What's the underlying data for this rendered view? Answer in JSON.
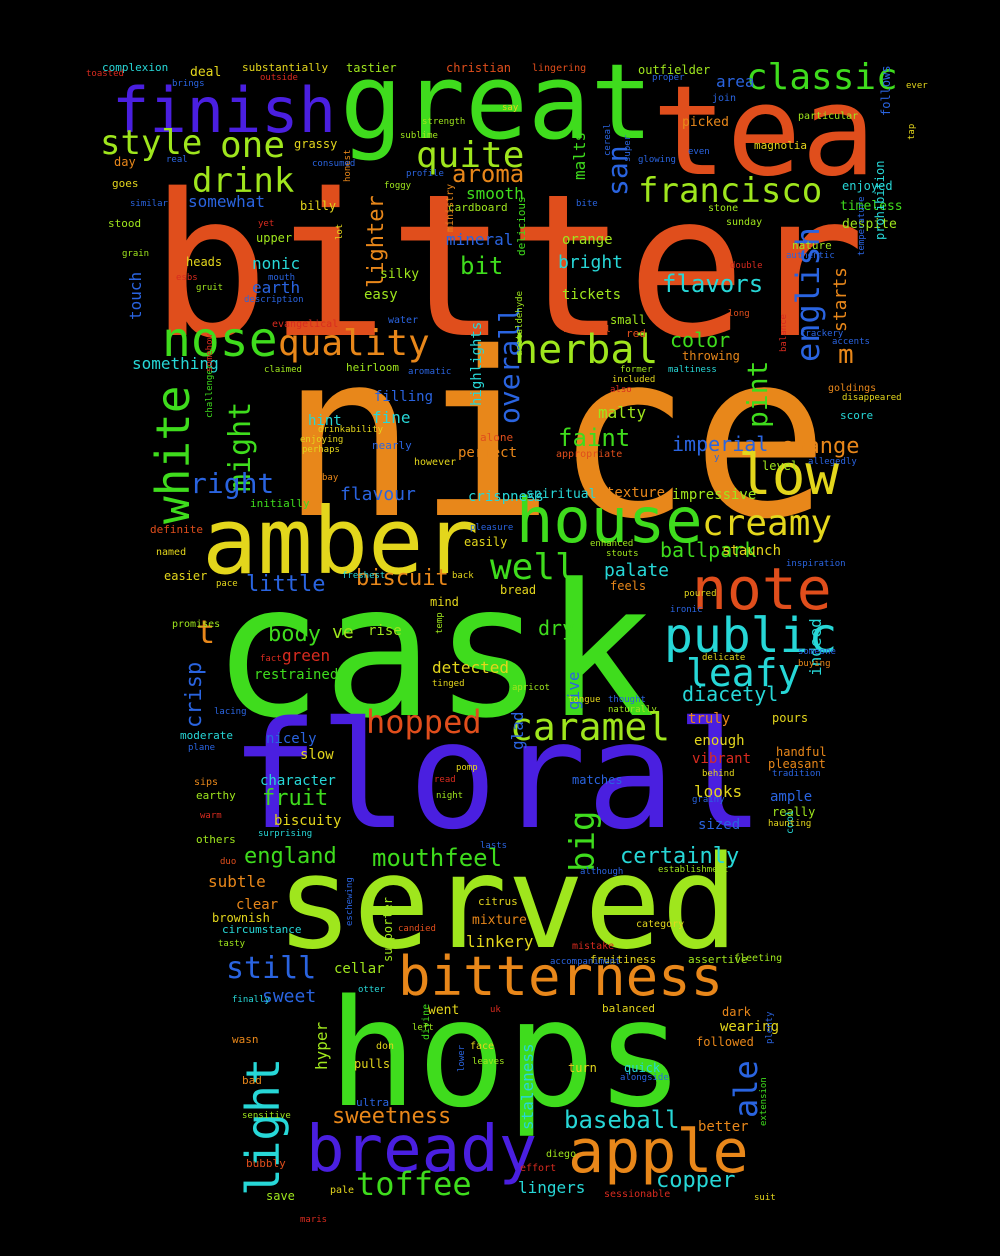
{
  "background": "#000000",
  "palette": {
    "orange": "#e8871a",
    "red_orange": "#e04e1c",
    "red": "#d82b1f",
    "yellow": "#e3d61c",
    "lime": "#9fe61d",
    "green": "#3fdc1d",
    "cyan": "#27d7d7",
    "blue": "#2a64e0",
    "indigo": "#4a1fe0"
  },
  "words": [
    {
      "text": "bitter",
      "color": "red_orange"
    },
    {
      "text": "nice",
      "color": "orange"
    },
    {
      "text": "cask",
      "color": "green"
    },
    {
      "text": "floral",
      "color": "indigo"
    },
    {
      "text": "served",
      "color": "lime"
    },
    {
      "text": "hops",
      "color": "green"
    },
    {
      "text": "great",
      "color": "green"
    },
    {
      "text": "tea",
      "color": "red_orange"
    },
    {
      "text": "amber",
      "color": "yellow"
    },
    {
      "text": "finish",
      "color": "indigo"
    },
    {
      "text": "house",
      "color": "green"
    },
    {
      "text": "bitterness",
      "color": "orange"
    },
    {
      "text": "note",
      "color": "red_orange"
    },
    {
      "text": "public",
      "color": "cyan"
    },
    {
      "text": "bready",
      "color": "indigo"
    },
    {
      "text": "apple",
      "color": "orange"
    },
    {
      "text": "low",
      "color": "yellow"
    },
    {
      "text": "light",
      "color": "cyan"
    },
    {
      "text": "nose",
      "color": "green"
    },
    {
      "text": "classic",
      "color": "green"
    },
    {
      "text": "white",
      "color": "green"
    },
    {
      "text": "caramel",
      "color": "lime"
    },
    {
      "text": "quality",
      "color": "orange"
    },
    {
      "text": "herbal",
      "color": "lime"
    },
    {
      "text": "francisco",
      "color": "lime"
    },
    {
      "text": "creamy",
      "color": "yellow"
    },
    {
      "text": "one",
      "color": "lime"
    },
    {
      "text": "style",
      "color": "lime"
    },
    {
      "text": "quite",
      "color": "lime"
    },
    {
      "text": "drink",
      "color": "lime"
    },
    {
      "text": "english",
      "color": "blue"
    },
    {
      "text": "leafy",
      "color": "cyan"
    },
    {
      "text": "hopped",
      "color": "red_orange"
    },
    {
      "text": "well",
      "color": "green"
    },
    {
      "text": "big",
      "color": "green"
    },
    {
      "text": "overall",
      "color": "blue"
    },
    {
      "text": "might",
      "color": "green"
    },
    {
      "text": "right",
      "color": "blue"
    },
    {
      "text": "pint",
      "color": "green"
    },
    {
      "text": "ale",
      "color": "blue"
    },
    {
      "text": "toffee",
      "color": "green"
    },
    {
      "text": "mouthfeel",
      "color": "green"
    },
    {
      "text": "still",
      "color": "blue"
    },
    {
      "text": "san",
      "color": "blue"
    },
    {
      "text": "lighter",
      "color": "orange"
    },
    {
      "text": "aroma",
      "color": "orange"
    },
    {
      "text": "flavors",
      "color": "cyan"
    },
    {
      "text": "m",
      "color": "orange"
    },
    {
      "text": "t",
      "color": "orange"
    },
    {
      "text": "bit",
      "color": "green"
    },
    {
      "text": "biscuit",
      "color": "orange"
    },
    {
      "text": "faint",
      "color": "green"
    },
    {
      "text": "body",
      "color": "green"
    },
    {
      "text": "crisp",
      "color": "blue"
    },
    {
      "text": "sweetness",
      "color": "orange"
    },
    {
      "text": "baseball",
      "color": "cyan"
    },
    {
      "text": "copper",
      "color": "cyan"
    },
    {
      "text": "certainly",
      "color": "cyan"
    },
    {
      "text": "england",
      "color": "green"
    },
    {
      "text": "fruit",
      "color": "green"
    },
    {
      "text": "imperial",
      "color": "blue"
    },
    {
      "text": "change",
      "color": "orange"
    },
    {
      "text": "color",
      "color": "green"
    },
    {
      "text": "diacetyl",
      "color": "cyan"
    },
    {
      "text": "ballpark",
      "color": "green"
    },
    {
      "text": "little",
      "color": "blue"
    },
    {
      "text": "palate",
      "color": "cyan"
    },
    {
      "text": "starts",
      "color": "orange"
    },
    {
      "text": "flavour",
      "color": "blue"
    },
    {
      "text": "smooth",
      "color": "green"
    },
    {
      "text": "bright",
      "color": "cyan"
    },
    {
      "text": "malts",
      "color": "green"
    },
    {
      "text": "mineral",
      "color": "blue"
    },
    {
      "text": "earth",
      "color": "blue"
    },
    {
      "text": "nonic",
      "color": "cyan"
    },
    {
      "text": "touch",
      "color": "blue"
    },
    {
      "text": "something",
      "color": "cyan"
    },
    {
      "text": "somewhat",
      "color": "blue"
    },
    {
      "text": "hint",
      "color": "cyan"
    },
    {
      "text": "fine",
      "color": "cyan"
    },
    {
      "text": "filling",
      "color": "blue"
    },
    {
      "text": "highlights",
      "color": "cyan"
    },
    {
      "text": "perfect",
      "color": "orange"
    },
    {
      "text": "malty",
      "color": "lime"
    },
    {
      "text": "dry",
      "color": "green"
    },
    {
      "text": "give",
      "color": "blue"
    },
    {
      "text": "glad",
      "color": "blue"
    },
    {
      "text": "detected",
      "color": "yellow"
    },
    {
      "text": "restrained",
      "color": "green"
    },
    {
      "text": "green",
      "color": "red"
    },
    {
      "text": "rise",
      "color": "lime"
    },
    {
      "text": "ve",
      "color": "lime"
    },
    {
      "text": "slow",
      "color": "yellow"
    },
    {
      "text": "character",
      "color": "cyan"
    },
    {
      "text": "biscuity",
      "color": "yellow"
    },
    {
      "text": "nicely",
      "color": "blue"
    },
    {
      "text": "subtle",
      "color": "orange"
    },
    {
      "text": "clear",
      "color": "orange"
    },
    {
      "text": "brownish",
      "color": "yellow"
    },
    {
      "text": "circumstance",
      "color": "cyan"
    },
    {
      "text": "sweet",
      "color": "blue"
    },
    {
      "text": "hyper",
      "color": "lime"
    },
    {
      "text": "cellar",
      "color": "lime"
    },
    {
      "text": "linkery",
      "color": "yellow"
    },
    {
      "text": "mixture",
      "color": "orange"
    },
    {
      "text": "staleness",
      "color": "cyan"
    },
    {
      "text": "pulls",
      "color": "yellow"
    },
    {
      "text": "lingers",
      "color": "cyan"
    },
    {
      "text": "wearing",
      "color": "yellow"
    },
    {
      "text": "dark",
      "color": "orange"
    },
    {
      "text": "followed",
      "color": "orange"
    },
    {
      "text": "quick",
      "color": "cyan"
    },
    {
      "text": "turn",
      "color": "yellow"
    },
    {
      "text": "better",
      "color": "orange"
    },
    {
      "text": "looks",
      "color": "yellow"
    },
    {
      "text": "sized",
      "color": "blue"
    },
    {
      "text": "ample",
      "color": "blue"
    },
    {
      "text": "really",
      "color": "lime"
    },
    {
      "text": "handful",
      "color": "orange"
    },
    {
      "text": "pleasant",
      "color": "orange"
    },
    {
      "text": "enough",
      "color": "yellow"
    },
    {
      "text": "vibrant",
      "color": "red"
    },
    {
      "text": "truly",
      "color": "orange"
    },
    {
      "text": "pours",
      "color": "yellow"
    },
    {
      "text": "indeed",
      "color": "cyan"
    },
    {
      "text": "texture",
      "color": "orange"
    },
    {
      "text": "impressive",
      "color": "lime"
    },
    {
      "text": "crispness",
      "color": "cyan"
    },
    {
      "text": "spiritual",
      "color": "cyan"
    },
    {
      "text": "staunch",
      "color": "yellow"
    },
    {
      "text": "easily",
      "color": "yellow"
    },
    {
      "text": "bread",
      "color": "yellow"
    },
    {
      "text": "feels",
      "color": "orange"
    },
    {
      "text": "level",
      "color": "lime"
    },
    {
      "text": "score",
      "color": "cyan"
    },
    {
      "text": "goldings",
      "color": "orange"
    },
    {
      "text": "tickets",
      "color": "lime"
    },
    {
      "text": "small",
      "color": "lime"
    },
    {
      "text": "orange",
      "color": "lime"
    },
    {
      "text": "easy",
      "color": "lime"
    },
    {
      "text": "upper",
      "color": "lime"
    },
    {
      "text": "heads",
      "color": "yellow"
    },
    {
      "text": "stood",
      "color": "lime"
    },
    {
      "text": "goes",
      "color": "yellow"
    },
    {
      "text": "day",
      "color": "orange"
    },
    {
      "text": "deal",
      "color": "yellow"
    },
    {
      "text": "tastier",
      "color": "lime"
    },
    {
      "text": "christian",
      "color": "red_orange"
    },
    {
      "text": "outfielder",
      "color": "lime"
    },
    {
      "text": "area",
      "color": "blue"
    },
    {
      "text": "picked",
      "color": "orange"
    },
    {
      "text": "magnolia",
      "color": "yellow"
    },
    {
      "text": "follows",
      "color": "blue"
    },
    {
      "text": "enjoyed",
      "color": "cyan"
    },
    {
      "text": "timeless",
      "color": "green"
    },
    {
      "text": "despite",
      "color": "lime"
    },
    {
      "text": "nature",
      "color": "lime"
    },
    {
      "text": "prohibition",
      "color": "cyan"
    },
    {
      "text": "cardboard",
      "color": "lime"
    },
    {
      "text": "billy",
      "color": "yellow"
    },
    {
      "text": "grassy",
      "color": "yellow"
    },
    {
      "text": "complexion",
      "color": "cyan"
    },
    {
      "text": "substantially",
      "color": "yellow"
    },
    {
      "text": "lingering",
      "color": "red_orange"
    },
    {
      "text": "particular",
      "color": "lime"
    },
    {
      "text": "sunday",
      "color": "lime"
    },
    {
      "text": "stone",
      "color": "lime"
    },
    {
      "text": "silky",
      "color": "lime"
    },
    {
      "text": "water",
      "color": "blue"
    },
    {
      "text": "red",
      "color": "red_orange"
    },
    {
      "text": "throwing",
      "color": "orange"
    },
    {
      "text": "heirloom",
      "color": "lime"
    },
    {
      "text": "alone",
      "color": "red_orange"
    },
    {
      "text": "however",
      "color": "yellow"
    },
    {
      "text": "appropriate",
      "color": "red_orange"
    },
    {
      "text": "nearly",
      "color": "blue"
    },
    {
      "text": "ministry",
      "color": "orange"
    },
    {
      "text": "delicious",
      "color": "green"
    },
    {
      "text": "evangelical",
      "color": "red"
    },
    {
      "text": "initially",
      "color": "green"
    },
    {
      "text": "definite",
      "color": "red_orange"
    },
    {
      "text": "named",
      "color": "yellow"
    },
    {
      "text": "easier",
      "color": "yellow"
    },
    {
      "text": "promises",
      "color": "lime"
    },
    {
      "text": "moderate",
      "color": "cyan"
    },
    {
      "text": "sips",
      "color": "orange"
    },
    {
      "text": "earthy",
      "color": "lime"
    },
    {
      "text": "others",
      "color": "lime"
    },
    {
      "text": "cool",
      "color": "cyan"
    },
    {
      "text": "citrus",
      "color": "yellow"
    },
    {
      "text": "category",
      "color": "yellow"
    },
    {
      "text": "assertive",
      "color": "lime"
    },
    {
      "text": "fruitiness",
      "color": "yellow"
    },
    {
      "text": "mistake",
      "color": "red"
    },
    {
      "text": "balanced",
      "color": "yellow"
    },
    {
      "text": "went",
      "color": "yellow"
    },
    {
      "text": "face",
      "color": "yellow"
    },
    {
      "text": "divine",
      "color": "green"
    },
    {
      "text": "don",
      "color": "yellow"
    },
    {
      "text": "wasn",
      "color": "orange"
    },
    {
      "text": "bad",
      "color": "orange"
    },
    {
      "text": "save",
      "color": "lime"
    },
    {
      "text": "pale",
      "color": "yellow"
    },
    {
      "text": "bubbly",
      "color": "red_orange"
    },
    {
      "text": "sensitive",
      "color": "lime"
    },
    {
      "text": "ultra",
      "color": "blue"
    },
    {
      "text": "diego",
      "color": "lime"
    },
    {
      "text": "effort",
      "color": "red"
    },
    {
      "text": "sessionable",
      "color": "red"
    },
    {
      "text": "suit",
      "color": "yellow"
    },
    {
      "text": "extension",
      "color": "green"
    },
    {
      "text": "plenty",
      "color": "blue"
    },
    {
      "text": "alongside",
      "color": "blue"
    },
    {
      "text": "fleeting",
      "color": "lime"
    },
    {
      "text": "supporter",
      "color": "lime"
    },
    {
      "text": "matches",
      "color": "blue"
    },
    {
      "text": "establishment",
      "color": "lime"
    },
    {
      "text": "tradition",
      "color": "blue"
    },
    {
      "text": "haunting",
      "color": "yellow"
    },
    {
      "text": "behind",
      "color": "yellow"
    },
    {
      "text": "grainy",
      "color": "blue"
    },
    {
      "text": "enhanced",
      "color": "lime"
    },
    {
      "text": "stouts",
      "color": "lime"
    },
    {
      "text": "inspiration",
      "color": "blue"
    },
    {
      "text": "buying",
      "color": "orange"
    },
    {
      "text": "someone",
      "color": "blue"
    },
    {
      "text": "delicate",
      "color": "yellow"
    },
    {
      "text": "naturally",
      "color": "lime"
    },
    {
      "text": "thought",
      "color": "blue"
    },
    {
      "text": "ironic",
      "color": "blue"
    },
    {
      "text": "apricot",
      "color": "lime"
    },
    {
      "text": "tongue",
      "color": "yellow"
    },
    {
      "text": "lasts",
      "color": "blue"
    },
    {
      "text": "night",
      "color": "lime"
    },
    {
      "text": "pomp",
      "color": "yellow"
    },
    {
      "text": "read",
      "color": "red"
    },
    {
      "text": "candied",
      "color": "red_orange"
    },
    {
      "text": "duo",
      "color": "red_orange"
    },
    {
      "text": "surprising",
      "color": "cyan"
    },
    {
      "text": "warm",
      "color": "red"
    },
    {
      "text": "plane",
      "color": "blue"
    },
    {
      "text": "lacing",
      "color": "blue"
    },
    {
      "text": "fact",
      "color": "red"
    },
    {
      "text": "pace",
      "color": "yellow"
    },
    {
      "text": "freshest",
      "color": "cyan"
    },
    {
      "text": "back",
      "color": "yellow"
    },
    {
      "text": "pleasure",
      "color": "blue"
    },
    {
      "text": "tinged",
      "color": "yellow"
    },
    {
      "text": "temp",
      "color": "lime"
    },
    {
      "text": "mind",
      "color": "yellow"
    },
    {
      "text": "challenger",
      "color": "green"
    },
    {
      "text": "somehow",
      "color": "red"
    },
    {
      "text": "enjoying",
      "color": "yellow"
    },
    {
      "text": "perhaps",
      "color": "yellow"
    },
    {
      "text": "drinkability",
      "color": "yellow"
    },
    {
      "text": "bay",
      "color": "orange"
    },
    {
      "text": "claimed",
      "color": "lime"
    },
    {
      "text": "aromatic",
      "color": "blue"
    },
    {
      "text": "acetaldehyde",
      "color": "lime"
    },
    {
      "text": "also",
      "color": "red"
    },
    {
      "text": "included",
      "color": "yellow"
    },
    {
      "text": "former",
      "color": "lime"
    },
    {
      "text": "maltiness",
      "color": "cyan"
    },
    {
      "text": "balance",
      "color": "red"
    },
    {
      "text": "disappeared",
      "color": "yellow"
    },
    {
      "text": "allegedly",
      "color": "blue"
    },
    {
      "text": "accents",
      "color": "blue"
    },
    {
      "text": "crackery",
      "color": "blue"
    },
    {
      "text": "temperature",
      "color": "blue"
    },
    {
      "text": "long",
      "color": "red_orange"
    },
    {
      "text": "double",
      "color": "red"
    },
    {
      "text": "authentic",
      "color": "blue"
    },
    {
      "text": "flavorful",
      "color": "red_orange"
    },
    {
      "text": "description",
      "color": "blue"
    },
    {
      "text": "esbs",
      "color": "red"
    },
    {
      "text": "gruit",
      "color": "lime"
    },
    {
      "text": "mouth",
      "color": "blue"
    },
    {
      "text": "grain",
      "color": "lime"
    },
    {
      "text": "similar",
      "color": "blue"
    },
    {
      "text": "real",
      "color": "blue"
    },
    {
      "text": "yet",
      "color": "red"
    },
    {
      "text": "lot",
      "color": "yellow"
    },
    {
      "text": "honest",
      "color": "orange"
    },
    {
      "text": "foggy",
      "color": "lime"
    },
    {
      "text": "profile",
      "color": "blue"
    },
    {
      "text": "consumed",
      "color": "blue"
    },
    {
      "text": "sublime",
      "color": "lime"
    },
    {
      "text": "strength",
      "color": "lime"
    },
    {
      "text": "say",
      "color": "yellow"
    },
    {
      "text": "bite",
      "color": "blue"
    },
    {
      "text": "cereal",
      "color": "blue"
    },
    {
      "text": "super",
      "color": "blue"
    },
    {
      "text": "glowing",
      "color": "blue"
    },
    {
      "text": "even",
      "color": "blue"
    },
    {
      "text": "proper",
      "color": "blue"
    },
    {
      "text": "join",
      "color": "blue"
    },
    {
      "text": "ever",
      "color": "yellow"
    },
    {
      "text": "tap",
      "color": "yellow"
    },
    {
      "text": "toasted",
      "color": "red"
    },
    {
      "text": "brings",
      "color": "blue"
    },
    {
      "text": "outside",
      "color": "red"
    },
    {
      "text": "poured",
      "color": "yellow"
    },
    {
      "text": "y",
      "color": "blue"
    },
    {
      "text": "left",
      "color": "lime"
    },
    {
      "text": "lower",
      "color": "blue"
    },
    {
      "text": "leaves",
      "color": "lime"
    },
    {
      "text": "uk",
      "color": "red"
    },
    {
      "text": "accompaniment",
      "color": "blue"
    },
    {
      "text": "finally",
      "color": "cyan"
    },
    {
      "text": "otter",
      "color": "cyan"
    },
    {
      "text": "tasty",
      "color": "lime"
    },
    {
      "text": "eschewing",
      "color": "blue"
    },
    {
      "text": "although",
      "color": "blue"
    },
    {
      "text": "maris",
      "color": "red"
    }
  ]
}
